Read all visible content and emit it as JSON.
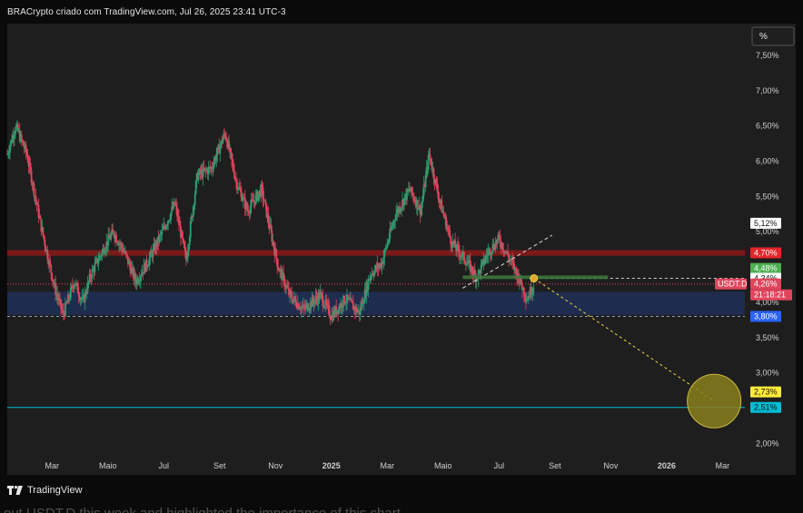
{
  "header": {
    "title": "BRACrypto criado com TradingView.com, Jul 26, 2025 23:41 UTC-3"
  },
  "footer": {
    "brand": "TradingView"
  },
  "caption": {
    "text": "out USDT.D this week and highlighted the importance of this chart"
  },
  "colors": {
    "background": "#1e1e1e",
    "bull": "#2e9c72",
    "bear": "#e0455c",
    "resistance_zone": "#8b1a1a",
    "support_zone": "#1f2d52",
    "cyan_line": "#00bcd4",
    "projection": "#e8d24a",
    "trendline": "#dcdcdc"
  },
  "chart_data": {
    "type": "candlestick",
    "symbol": "USDT.D",
    "x_ticks": [
      {
        "label": "Mar",
        "t": 1.6
      },
      {
        "label": "Maio",
        "t": 3.6
      },
      {
        "label": "Jul",
        "t": 5.6
      },
      {
        "label": "Set",
        "t": 7.6
      },
      {
        "label": "Nov",
        "t": 9.6
      },
      {
        "label": "2025",
        "t": 11.6,
        "bold": true
      },
      {
        "label": "Mar",
        "t": 13.6
      },
      {
        "label": "Maio",
        "t": 15.6
      },
      {
        "label": "Jul",
        "t": 17.6
      },
      {
        "label": "Set",
        "t": 19.6
      },
      {
        "label": "Nov",
        "t": 21.6
      },
      {
        "label": "2026",
        "t": 23.6,
        "bold": true
      },
      {
        "label": "Mar",
        "t": 25.6
      }
    ],
    "x_range": [
      0,
      26.4
    ],
    "y_unit": "%",
    "y_range": [
      1.85,
      7.95
    ],
    "y_ticks": [
      "2,00%",
      "2,50%",
      "3,00%",
      "3,50%",
      "4,00%",
      "4,50%",
      "5,00%",
      "5,50%",
      "6,00%",
      "6,50%",
      "7,00%",
      "7,50%"
    ],
    "y_tick_values": [
      2.0,
      2.5,
      3.0,
      3.5,
      4.0,
      4.5,
      5.0,
      5.5,
      6.0,
      6.5,
      7.0,
      7.5
    ],
    "scale_button": "%",
    "price_path": [
      {
        "t": 0.0,
        "v": 6.1
      },
      {
        "t": 0.3,
        "v": 6.5
      },
      {
        "t": 0.7,
        "v": 6.1
      },
      {
        "t": 1.2,
        "v": 5.1
      },
      {
        "t": 1.7,
        "v": 4.2
      },
      {
        "t": 2.0,
        "v": 3.82
      },
      {
        "t": 2.4,
        "v": 4.3
      },
      {
        "t": 2.7,
        "v": 4.0
      },
      {
        "t": 3.0,
        "v": 4.4
      },
      {
        "t": 3.5,
        "v": 4.8
      },
      {
        "t": 3.8,
        "v": 5.0
      },
      {
        "t": 4.2,
        "v": 4.7
      },
      {
        "t": 4.6,
        "v": 4.3
      },
      {
        "t": 5.0,
        "v": 4.55
      },
      {
        "t": 5.5,
        "v": 4.95
      },
      {
        "t": 6.0,
        "v": 5.4
      },
      {
        "t": 6.4,
        "v": 4.6
      },
      {
        "t": 6.8,
        "v": 5.8
      },
      {
        "t": 7.3,
        "v": 5.9
      },
      {
        "t": 7.8,
        "v": 6.4
      },
      {
        "t": 8.2,
        "v": 5.7
      },
      {
        "t": 8.6,
        "v": 5.3
      },
      {
        "t": 9.1,
        "v": 5.6
      },
      {
        "t": 9.7,
        "v": 4.5
      },
      {
        "t": 10.1,
        "v": 4.1
      },
      {
        "t": 10.6,
        "v": 3.9
      },
      {
        "t": 11.2,
        "v": 4.1
      },
      {
        "t": 11.6,
        "v": 3.8
      },
      {
        "t": 12.1,
        "v": 4.05
      },
      {
        "t": 12.6,
        "v": 3.85
      },
      {
        "t": 13.0,
        "v": 4.4
      },
      {
        "t": 13.4,
        "v": 4.55
      },
      {
        "t": 13.9,
        "v": 5.25
      },
      {
        "t": 14.4,
        "v": 5.6
      },
      {
        "t": 14.8,
        "v": 5.3
      },
      {
        "t": 15.1,
        "v": 6.1
      },
      {
        "t": 15.5,
        "v": 5.4
      },
      {
        "t": 15.9,
        "v": 4.85
      },
      {
        "t": 16.4,
        "v": 4.6
      },
      {
        "t": 16.8,
        "v": 4.35
      },
      {
        "t": 17.2,
        "v": 4.7
      },
      {
        "t": 17.6,
        "v": 4.9
      },
      {
        "t": 18.0,
        "v": 4.6
      },
      {
        "t": 18.3,
        "v": 4.35
      },
      {
        "t": 18.6,
        "v": 4.05
      },
      {
        "t": 18.85,
        "v": 4.26
      }
    ],
    "zones": [
      {
        "name": "resistance",
        "from": 4.66,
        "to": 4.74
      },
      {
        "name": "support",
        "from": 3.82,
        "to": 4.15
      }
    ],
    "lines": [
      {
        "name": "horizontal",
        "value": 2.51,
        "style": "solid"
      },
      {
        "name": "dotted-current",
        "value": 4.26,
        "style": "dotted"
      },
      {
        "name": "dashed-support",
        "value": 3.8,
        "style": "dashed"
      },
      {
        "name": "dashed-key",
        "value": 4.34,
        "style": "dashed"
      }
    ],
    "trendline": {
      "t1": 16.3,
      "v1": 4.2,
      "t2": 19.5,
      "v2": 4.95
    },
    "green_box": {
      "t1": 16.3,
      "t2": 21.5,
      "from": 4.33,
      "to": 4.38
    },
    "projection": {
      "t1": 18.85,
      "v1": 4.34,
      "t2": 25.3,
      "v2": 2.6,
      "circle_radius_pct": 0.38
    },
    "price_labels": [
      {
        "text": "5,12%",
        "value": 5.12,
        "bg": "#ffffff",
        "fg": "#111111"
      },
      {
        "text": "4,70%",
        "value": 4.7,
        "bg": "#e5252a",
        "fg": "#ffffff"
      },
      {
        "text": "4,48%",
        "value": 4.48,
        "bg": "#4caf50",
        "fg": "#ffffff"
      },
      {
        "text": "4,48%",
        "value": 4.48,
        "bg": "#ffeb3b",
        "fg": "#111111",
        "offset": 1
      },
      {
        "text": "4,34%",
        "value": 4.34,
        "bg": "#ffffff",
        "fg": "#111111"
      },
      {
        "text": "4,26%",
        "value": 4.26,
        "bg": "#e0455c",
        "fg": "#ffffff"
      },
      {
        "text": "21:18:21",
        "value": 4.26,
        "bg": "#e0455c",
        "fg": "#ffffff",
        "offset": 1
      },
      {
        "text": "3,80%",
        "value": 3.8,
        "bg": "#2962ff",
        "fg": "#ffffff"
      },
      {
        "text": "2,73%",
        "value": 2.73,
        "bg": "#ffeb3b",
        "fg": "#111111"
      },
      {
        "text": "2,51%",
        "value": 2.51,
        "bg": "#00bcd4",
        "fg": "#111111"
      }
    ],
    "symbol_tag": {
      "text": "USDT.D",
      "value": 4.26,
      "bg": "#e0455c",
      "fg": "#ffffff"
    }
  }
}
